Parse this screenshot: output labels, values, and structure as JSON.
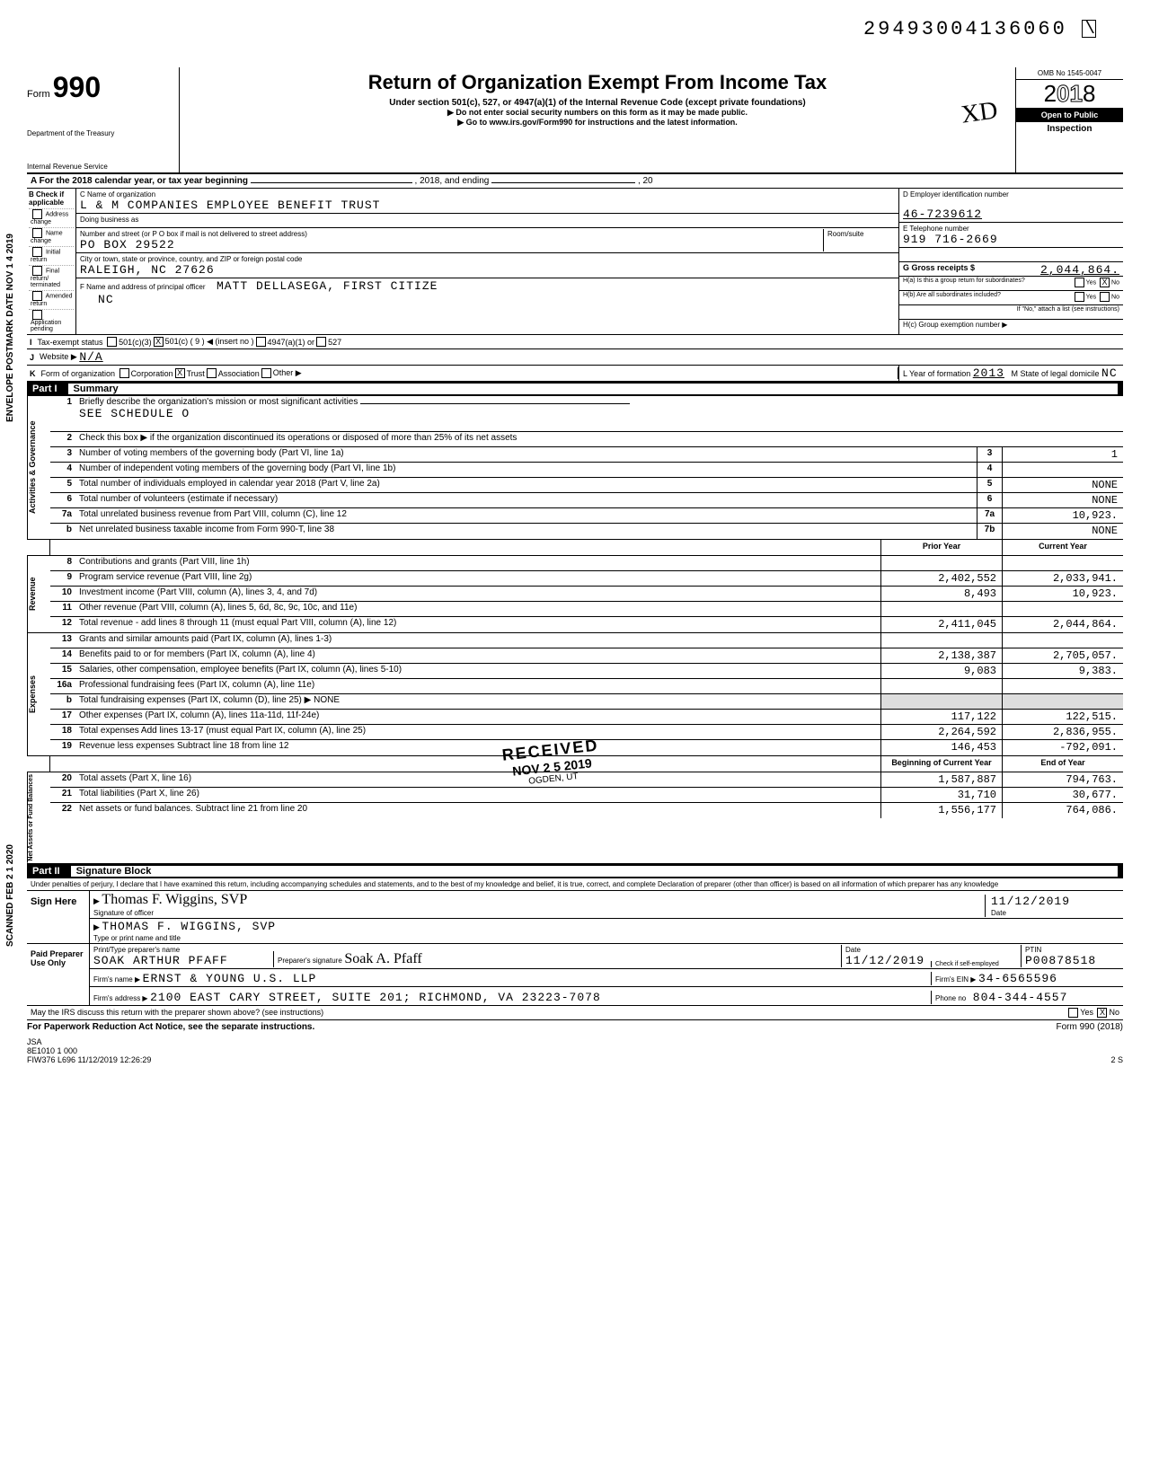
{
  "header_id": "29493004136060",
  "form": {
    "number": "990",
    "title": "Return of Organization Exempt From Income Tax",
    "subtitle": "Under section 501(c), 527, or 4947(a)(1) of the Internal Revenue Code (except private foundations)",
    "line1": "▶ Do not enter social security numbers on this form as it may be made public.",
    "line2": "▶ Go to www.irs.gov/Form990 for instructions and the latest information.",
    "dept1": "Department of the Treasury",
    "dept2": "Internal Revenue Service",
    "omb": "OMB No 1545-0047",
    "year": "2018",
    "open_to_public": "Open to Public",
    "inspection": "Inspection"
  },
  "lineA": {
    "prefix": "A  For the 2018 calendar year, or tax year beginning",
    "mid": ", 2018, and ending",
    "suffix": ", 20"
  },
  "B": {
    "heading": "B  Check if applicable",
    "items": [
      "Address change",
      "Name change",
      "Initial return",
      "Final return/ terminated",
      "Amended return",
      "Application pending"
    ]
  },
  "C": {
    "name_label": "C Name of organization",
    "name": "L & M COMPANIES EMPLOYEE BENEFIT TRUST",
    "dba_label": "Doing business as",
    "street_label": "Number and street (or P O  box if mail is not delivered to street address)",
    "room_label": "Room/suite",
    "street": "PO BOX 29522",
    "city_label": "City or town, state or province, country, and ZIP or foreign postal code",
    "city": "RALEIGH, NC  27626",
    "officer_label": "F  Name and address of principal officer",
    "officer": "MATT DELLASEGA, FIRST CITIZE",
    "officer_addr": "NC"
  },
  "D": {
    "ein_label": "D Employer identification number",
    "ein": "46-7239612",
    "phone_label": "E Telephone number",
    "phone": "919 716-2669",
    "gross_label": "G Gross receipts $",
    "gross": "2,044,864.",
    "h_a": "H(a)  Is this a group return for subordinates?",
    "h_b": "H(b)  Are all subordinates included?",
    "h_note": "If \"No,\" attach a list (see instructions)",
    "h_c": "H(c)  Group exemption number  ▶"
  },
  "I": {
    "label": "I",
    "text": "Tax-exempt status",
    "opts": [
      "501(c)(3)",
      "501(c) ( 9  ) ◀  (insert no )",
      "4947(a)(1) or",
      "527"
    ]
  },
  "J": {
    "label": "J",
    "text": "Website  ▶",
    "value": "N/A"
  },
  "K": {
    "label": "K",
    "text": "Form of organization",
    "opts": [
      "Corporation",
      "Trust",
      "Association",
      "Other ▶"
    ],
    "L": "L  Year of formation",
    "L_val": "2013",
    "M": "M State of legal domicile",
    "M_val": "NC"
  },
  "partI": {
    "num": "Part I",
    "title": "Summary"
  },
  "gov": {
    "label": "Activities & Governance",
    "lines": {
      "1": {
        "desc": "Briefly describe the organization's mission or most significant activities",
        "val": "SEE SCHEDULE O"
      },
      "2": "Check this box  ▶        if the organization discontinued its operations or disposed of more than 25% of its net assets",
      "3": {
        "desc": "Number of voting members of the governing body (Part VI, line 1a)",
        "box": "3",
        "amt": "1"
      },
      "4": {
        "desc": "Number of independent voting members of the governing body (Part VI, line 1b)",
        "box": "4",
        "amt": ""
      },
      "5": {
        "desc": "Total number of individuals employed in calendar year 2018 (Part V, line 2a)",
        "box": "5",
        "amt": "NONE"
      },
      "6": {
        "desc": "Total number of volunteers (estimate if necessary)",
        "box": "6",
        "amt": "NONE"
      },
      "7a": {
        "desc": "Total unrelated business revenue from Part VIII, column (C), line 12",
        "box": "7a",
        "amt": "10,923."
      },
      "7b": {
        "desc": "Net unrelated business taxable income from Form 990-T, line 38",
        "box": "7b",
        "amt": "NONE"
      }
    }
  },
  "cols": {
    "prior": "Prior Year",
    "current": "Current Year"
  },
  "rev": {
    "label": "Revenue",
    "rows": [
      {
        "n": "8",
        "d": "Contributions and grants (Part VIII, line 1h)",
        "p": "",
        "c": ""
      },
      {
        "n": "9",
        "d": "Program service revenue (Part VIII, line 2g)",
        "p": "2,402,552",
        "c": "2,033,941."
      },
      {
        "n": "10",
        "d": "Investment income (Part VIII, column (A), lines 3, 4, and 7d)",
        "p": "8,493",
        "c": "10,923."
      },
      {
        "n": "11",
        "d": "Other revenue (Part VIII, column (A), lines 5, 6d, 8c, 9c, 10c, and 11e)",
        "p": "",
        "c": ""
      },
      {
        "n": "12",
        "d": "Total revenue - add lines 8 through 11 (must equal Part VIII, column (A), line 12)",
        "p": "2,411,045",
        "c": "2,044,864."
      }
    ]
  },
  "exp": {
    "label": "Expenses",
    "rows": [
      {
        "n": "13",
        "d": "Grants and similar amounts paid (Part IX, column (A), lines 1-3)",
        "p": "",
        "c": ""
      },
      {
        "n": "14",
        "d": "Benefits paid to or for members (Part IX, column (A), line 4)",
        "p": "2,138,387",
        "c": "2,705,057."
      },
      {
        "n": "15",
        "d": "Salaries, other compensation, employee benefits (Part IX, column (A), lines 5-10)",
        "p": "9,083",
        "c": "9,383."
      },
      {
        "n": "16a",
        "d": "Professional fundraising fees (Part IX, column (A), line 11e)",
        "p": "",
        "c": ""
      },
      {
        "n": "b",
        "d": "Total fundraising expenses (Part IX, column (D), line 25) ▶              NONE",
        "p": "—shade—",
        "c": "—shade—"
      },
      {
        "n": "17",
        "d": "Other expenses (Part IX, column (A), lines 11a-11d, 11f-24e)",
        "p": "117,122",
        "c": "122,515."
      },
      {
        "n": "18",
        "d": "Total expenses  Add lines 13-17 (must equal Part IX, column (A), line 25)",
        "p": "2,264,592",
        "c": "2,836,955."
      },
      {
        "n": "19",
        "d": "Revenue less expenses  Subtract line 18 from line 12",
        "p": "146,453",
        "c": "-792,091."
      }
    ]
  },
  "net": {
    "label": "Net Assets or Fund Balances",
    "hdr_p": "Beginning of Current Year",
    "hdr_c": "End of Year",
    "rows": [
      {
        "n": "20",
        "d": "Total assets (Part X, line 16)",
        "p": "1,587,887",
        "c": "794,763."
      },
      {
        "n": "21",
        "d": "Total liabilities (Part X, line 26)",
        "p": "31,710",
        "c": "30,677."
      },
      {
        "n": "22",
        "d": "Net assets or fund balances. Subtract line 21 from line 20",
        "p": "1,556,177",
        "c": "764,086."
      }
    ]
  },
  "partII": {
    "num": "Part II",
    "title": "Signature Block"
  },
  "sig": {
    "perjury": "Under penalties of perjury, I declare that I have examined this return, including accompanying schedules and statements, and to the best of my knowledge and belief, it is true, correct, and complete  Declaration of preparer (other than officer) is based on all information of which preparer has any knowledge",
    "sign_here": "Sign Here",
    "officer_sig": "Thomas F. Wiggins, SVP",
    "officer_sig_label": "Signature of officer",
    "date": "11/12/2019",
    "date_label": "Date",
    "officer_name": "THOMAS F. WIGGINS, SVP",
    "officer_name_label": "Type or print name and title",
    "paid": "Paid Preparer Use Only",
    "prep_name_label": "Print/Type preparer's name",
    "prep_name": "SOAK ARTHUR PFAFF",
    "prep_sig_label": "Preparer's signature",
    "prep_sig": "Soak A. Pfaff",
    "prep_date": "11/12/2019",
    "check_self": "Check         if self-employed",
    "ptin_label": "PTIN",
    "ptin": "P00878518",
    "firm_label": "Firm's name   ▶",
    "firm": "ERNST & YOUNG U.S. LLP",
    "firm_ein_label": "Firm's EIN  ▶",
    "firm_ein": "34-6565596",
    "firm_addr_label": "Firm's address ▶",
    "firm_addr": "2100 EAST CARY STREET, SUITE 201; RICHMOND, VA  23223-7078",
    "phone_label": "Phone no",
    "phone": "804-344-4557",
    "discuss": "May the IRS discuss this return with the preparer shown above? (see instructions)"
  },
  "footer": {
    "left": "For Paperwork Reduction Act Notice, see the separate instructions.",
    "right": "Form 990 (2018)",
    "jsa1": "JSA",
    "jsa2": "8E1010 1 000",
    "jsa3": "FIW376 L696 11/12/2019 12:26:29",
    "page": "2        S"
  },
  "side": {
    "envelope": "ENVELOPE   POSTMARK DATE NOV 1 4 2019",
    "scanned": "SCANNED FEB 2 1 2020"
  },
  "stamps": {
    "initials": "XD",
    "received": "RECEIVED",
    "received_date": "NOV 2 5 2019",
    "received_loc": "OGDEN, UT"
  }
}
